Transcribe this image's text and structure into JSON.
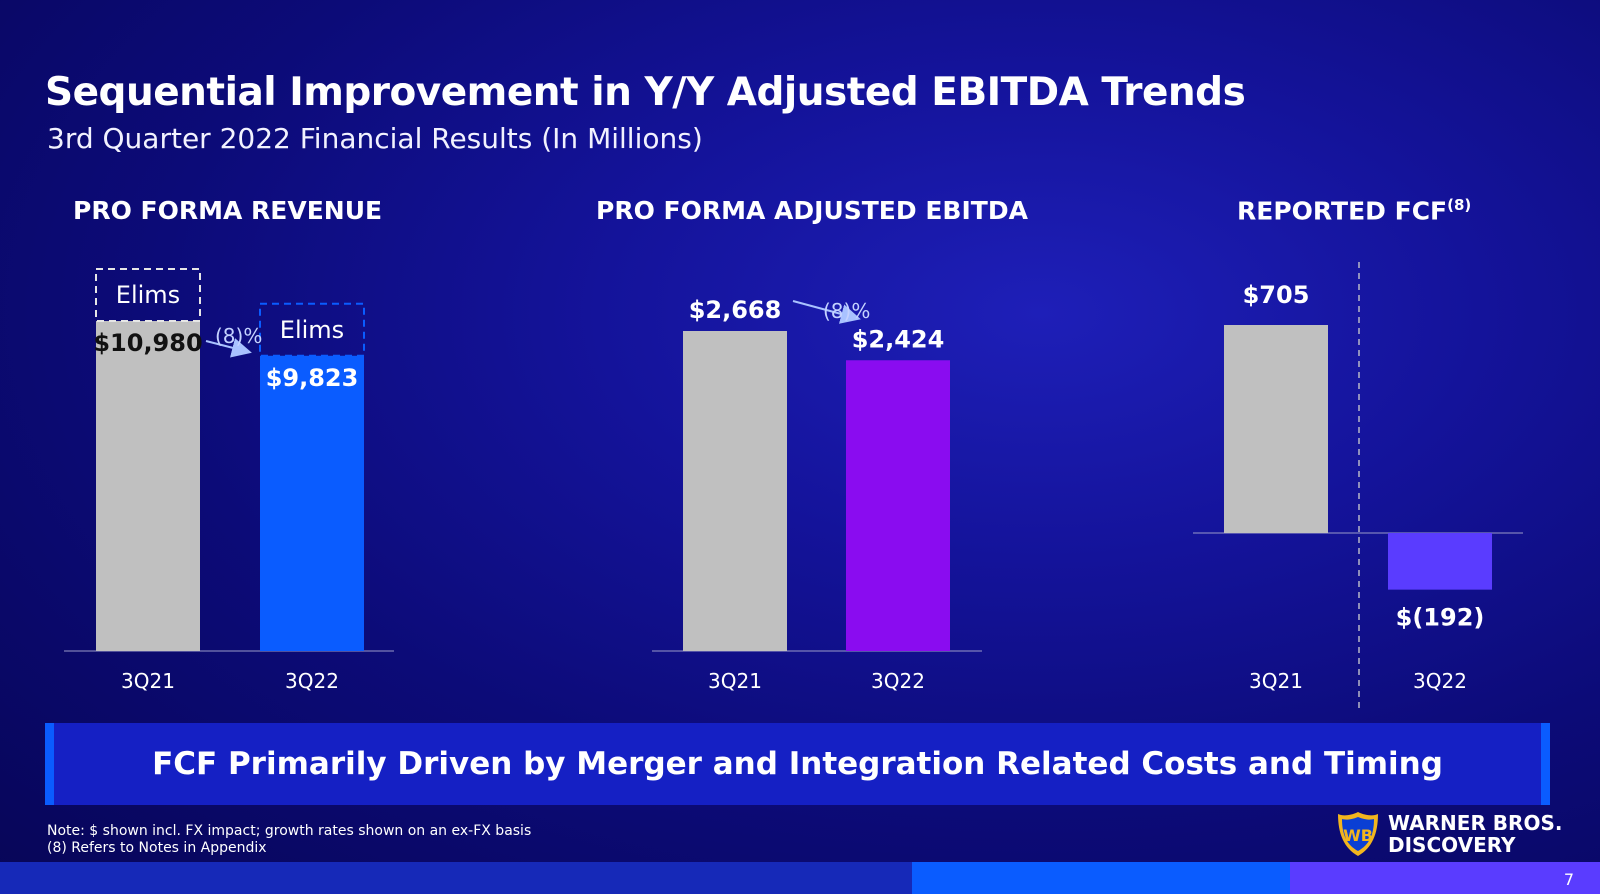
{
  "slide": {
    "title": "Sequential Improvement in Y/Y Adjusted EBITDA Trends",
    "subtitle": "3rd Quarter 2022 Financial Results (In Millions)",
    "banner": "FCF Primarily Driven by Merger and Integration Related Costs and Timing",
    "note_1": "Note: $ shown incl. FX impact; growth rates shown on an ex-FX basis",
    "note_2": "(8) Refers to Notes in Appendix",
    "logo_line_1": "WARNER BROS.",
    "logo_line_2": "DISCOVERY",
    "page_number": "7"
  },
  "chart_data": [
    {
      "type": "bar",
      "title": "PRO FORMA REVENUE",
      "categories": [
        "3Q21",
        "3Q22"
      ],
      "values": [
        10980,
        9823
      ],
      "value_labels": [
        "$10,980",
        "$9,823"
      ],
      "bar_colors": [
        "#c0c0c0",
        "#0a5cff"
      ],
      "elims_label": "Elims",
      "change_label": "(8)%"
    },
    {
      "type": "bar",
      "title": "PRO FORMA ADJUSTED EBITDA",
      "categories": [
        "3Q21",
        "3Q22"
      ],
      "values": [
        2668,
        2424
      ],
      "value_labels": [
        "$2,668",
        "$2,424"
      ],
      "bar_colors": [
        "#c0c0c0",
        "#8a0cf0"
      ],
      "change_label": "(8)%"
    },
    {
      "type": "bar",
      "title": "REPORTED FCF",
      "title_sup": "(8)",
      "categories": [
        "3Q21",
        "3Q22"
      ],
      "values": [
        705,
        -192
      ],
      "value_labels": [
        "$705",
        "$(192)"
      ],
      "bar_colors": [
        "#c0c0c0",
        "#5a3cff"
      ]
    }
  ]
}
